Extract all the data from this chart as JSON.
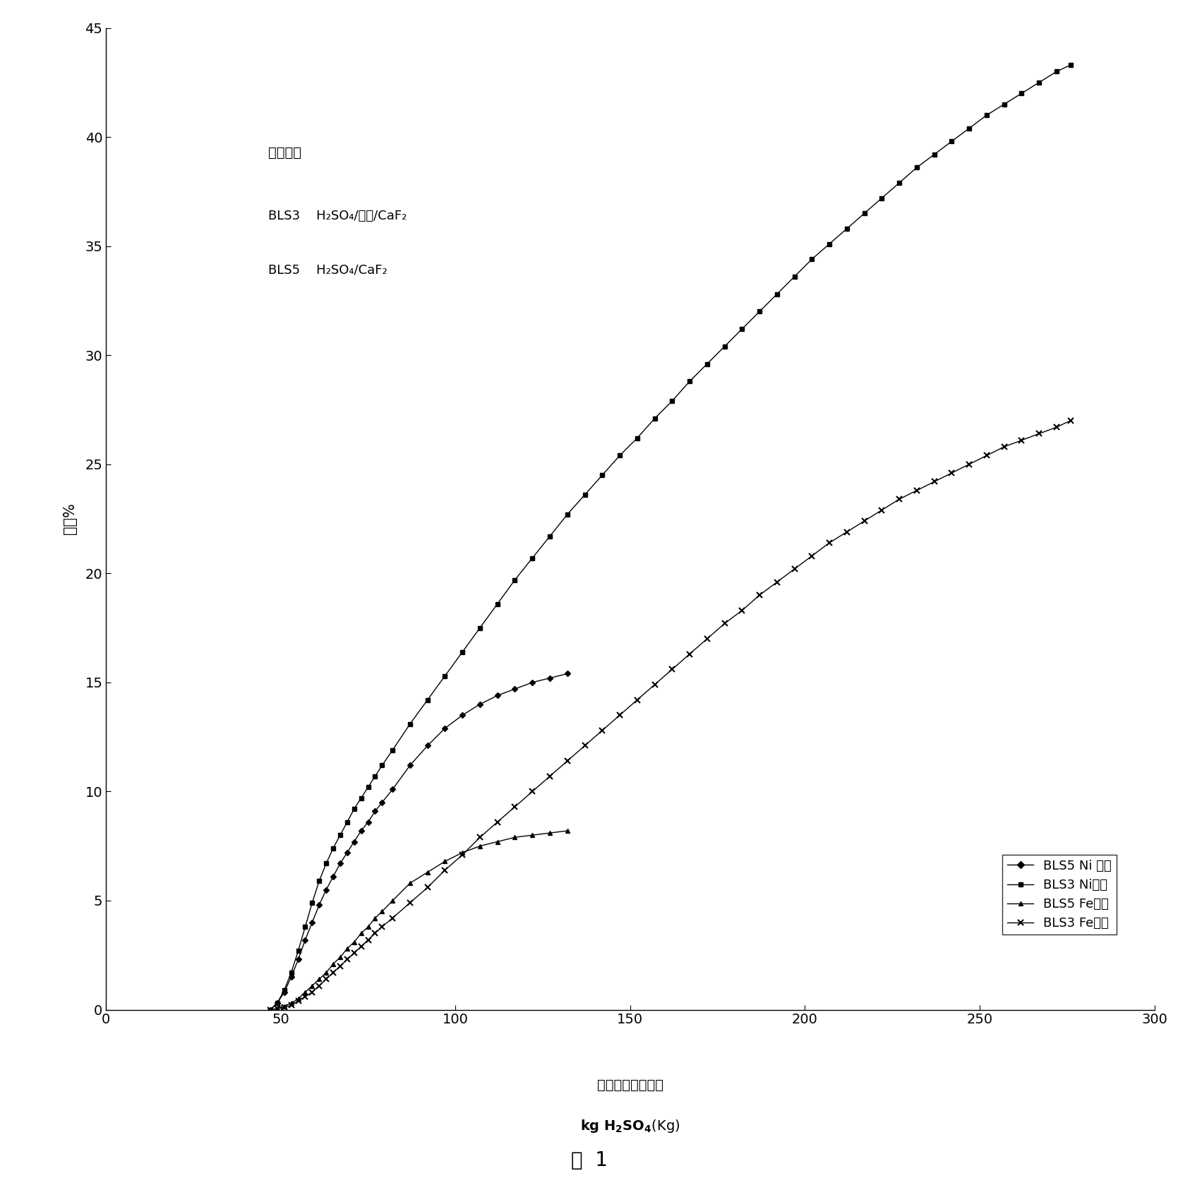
{
  "title": "图  1",
  "ylabel": "提取%",
  "xlim": [
    0,
    300
  ],
  "ylim": [
    0,
    45
  ],
  "xticks": [
    0,
    50,
    100,
    150,
    200,
    250,
    300
  ],
  "yticks": [
    0,
    5,
    10,
    15,
    20,
    25,
    30,
    35,
    40,
    45
  ],
  "ann_title": "集聚条件",
  "ann_bls3": "BLS3",
  "ann_bls5": "BLS5",
  "ann_bls3_formula": "H₂SO₄/盐水/CaF₂",
  "ann_bls5_formula": "H₂SO₄/CaF₂",
  "leg1": "BLS5 Ni 提取",
  "leg2": "BLS3 Ni提取",
  "leg3": "BLS5 Fe提取",
  "leg4": "BLS3 Fe提取",
  "xlabel_cn": "每公斤矿石消耗的",
  "xlabel_en": "kg H₂SO₄(Kg)",
  "BLS3_Ni_x": [
    47,
    49,
    51,
    53,
    55,
    57,
    59,
    61,
    63,
    65,
    67,
    69,
    71,
    73,
    75,
    77,
    79,
    82,
    87,
    92,
    97,
    102,
    107,
    112,
    117,
    122,
    127,
    132,
    137,
    142,
    147,
    152,
    157,
    162,
    167,
    172,
    177,
    182,
    187,
    192,
    197,
    202,
    207,
    212,
    217,
    222,
    227,
    232,
    237,
    242,
    247,
    252,
    257,
    262,
    267,
    272,
    276
  ],
  "BLS3_Ni_y": [
    0.0,
    0.3,
    0.9,
    1.7,
    2.7,
    3.8,
    4.9,
    5.9,
    6.7,
    7.4,
    8.0,
    8.6,
    9.2,
    9.7,
    10.2,
    10.7,
    11.2,
    11.9,
    13.1,
    14.2,
    15.3,
    16.4,
    17.5,
    18.6,
    19.7,
    20.7,
    21.7,
    22.7,
    23.6,
    24.5,
    25.4,
    26.2,
    27.1,
    27.9,
    28.8,
    29.6,
    30.4,
    31.2,
    32.0,
    32.8,
    33.6,
    34.4,
    35.1,
    35.8,
    36.5,
    37.2,
    37.9,
    38.6,
    39.2,
    39.8,
    40.4,
    41.0,
    41.5,
    42.0,
    42.5,
    43.0,
    43.3
  ],
  "BLS5_Ni_x": [
    47,
    49,
    51,
    53,
    55,
    57,
    59,
    61,
    63,
    65,
    67,
    69,
    71,
    73,
    75,
    77,
    79,
    82,
    87,
    92,
    97,
    102,
    107,
    112,
    117,
    122,
    127,
    132
  ],
  "BLS5_Ni_y": [
    0.0,
    0.3,
    0.8,
    1.5,
    2.3,
    3.2,
    4.0,
    4.8,
    5.5,
    6.1,
    6.7,
    7.2,
    7.7,
    8.2,
    8.6,
    9.1,
    9.5,
    10.1,
    11.2,
    12.1,
    12.9,
    13.5,
    14.0,
    14.4,
    14.7,
    15.0,
    15.2,
    15.4
  ],
  "BLS5_Fe_x": [
    47,
    49,
    51,
    53,
    55,
    57,
    59,
    61,
    63,
    65,
    67,
    69,
    71,
    73,
    75,
    77,
    79,
    82,
    87,
    92,
    97,
    102,
    107,
    112,
    117,
    122,
    127,
    132
  ],
  "BLS5_Fe_y": [
    0.0,
    0.05,
    0.15,
    0.3,
    0.5,
    0.8,
    1.1,
    1.4,
    1.7,
    2.1,
    2.4,
    2.8,
    3.1,
    3.5,
    3.8,
    4.2,
    4.5,
    5.0,
    5.8,
    6.3,
    6.8,
    7.2,
    7.5,
    7.7,
    7.9,
    8.0,
    8.1,
    8.2
  ],
  "BLS3_Fe_x": [
    47,
    49,
    51,
    53,
    55,
    57,
    59,
    61,
    63,
    65,
    67,
    69,
    71,
    73,
    75,
    77,
    79,
    82,
    87,
    92,
    97,
    102,
    107,
    112,
    117,
    122,
    127,
    132,
    137,
    142,
    147,
    152,
    157,
    162,
    167,
    172,
    177,
    182,
    187,
    192,
    197,
    202,
    207,
    212,
    217,
    222,
    227,
    232,
    237,
    242,
    247,
    252,
    257,
    262,
    267,
    272,
    276
  ],
  "BLS3_Fe_y": [
    0.0,
    0.05,
    0.1,
    0.2,
    0.4,
    0.6,
    0.8,
    1.1,
    1.4,
    1.7,
    2.0,
    2.3,
    2.6,
    2.9,
    3.2,
    3.5,
    3.8,
    4.2,
    4.9,
    5.6,
    6.4,
    7.1,
    7.9,
    8.6,
    9.3,
    10.0,
    10.7,
    11.4,
    12.1,
    12.8,
    13.5,
    14.2,
    14.9,
    15.6,
    16.3,
    17.0,
    17.7,
    18.3,
    19.0,
    19.6,
    20.2,
    20.8,
    21.4,
    21.9,
    22.4,
    22.9,
    23.4,
    23.8,
    24.2,
    24.6,
    25.0,
    25.4,
    25.8,
    26.1,
    26.4,
    26.7,
    27.0
  ]
}
